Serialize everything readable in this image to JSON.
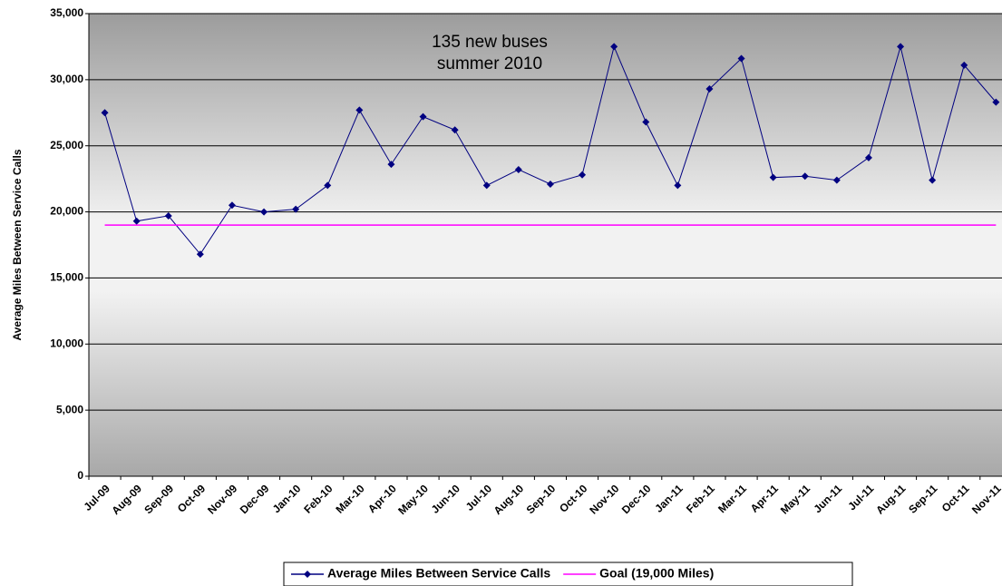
{
  "chart_data": {
    "type": "line",
    "y_label": "Average Miles Between Service Calls",
    "annotation": [
      "135 new buses",
      "summer 2010"
    ],
    "categories": [
      "Jul-09",
      "Aug-09",
      "Sep-09",
      "Oct-09",
      "Nov-09",
      "Dec-09",
      "Jan-10",
      "Feb-10",
      "Mar-10",
      "Apr-10",
      "May-10",
      "Jun-10",
      "Jul-10",
      "Aug-10",
      "Sep-10",
      "Oct-10",
      "Nov-10",
      "Dec-10",
      "Jan-11",
      "Feb-11",
      "Mar-11",
      "Apr-11",
      "May-11",
      "Jun-11",
      "Jul-11",
      "Aug-11",
      "Sep-11",
      "Oct-11",
      "Nov-11"
    ],
    "series": [
      {
        "name": "Average Miles Between Service Calls",
        "color": "#000080",
        "marker": "diamond",
        "values": [
          27500,
          19300,
          19700,
          16800,
          20500,
          20000,
          20200,
          22000,
          27700,
          23600,
          27200,
          26200,
          22000,
          23200,
          22100,
          22800,
          32500,
          26800,
          22000,
          29300,
          31600,
          22600,
          22700,
          22400,
          24100,
          32500,
          22400,
          31100,
          28300
        ]
      },
      {
        "name": "Goal (19,000 Miles)",
        "color": "#ff00ff",
        "marker": "none",
        "values": [
          19000,
          19000,
          19000,
          19000,
          19000,
          19000,
          19000,
          19000,
          19000,
          19000,
          19000,
          19000,
          19000,
          19000,
          19000,
          19000,
          19000,
          19000,
          19000,
          19000,
          19000,
          19000,
          19000,
          19000,
          19000,
          19000,
          19000,
          19000,
          19000
        ]
      }
    ],
    "ylim": [
      0,
      35000
    ],
    "yticks": [
      0,
      {
        "value": 5000,
        "label": "5,000"
      },
      {
        "value": 10000,
        "label": "10,000"
      },
      {
        "value": 15000,
        "label": "15,000"
      },
      {
        "value": 20000,
        "label": "20,000"
      },
      {
        "value": 25000,
        "label": "25,000"
      },
      {
        "value": 30000,
        "label": "30,000"
      },
      {
        "value": 35000,
        "label": "35,000"
      }
    ],
    "grid": true,
    "legend": "bottom"
  }
}
